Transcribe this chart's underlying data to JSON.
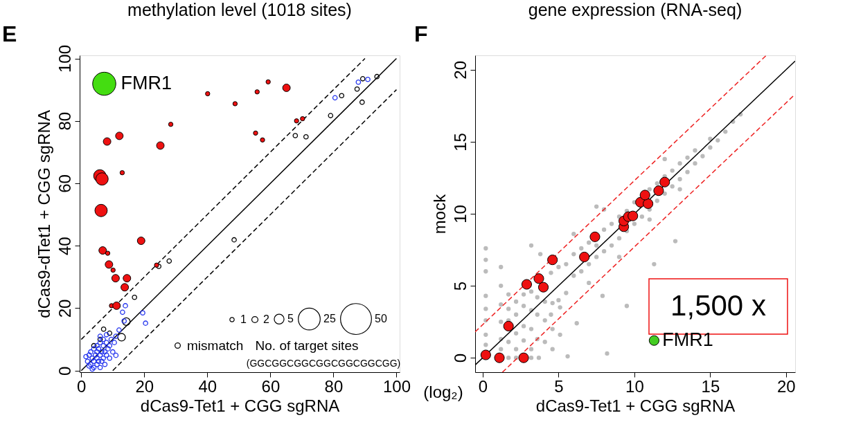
{
  "chart_data": [
    {
      "type": "bubble",
      "title": "methylation level (1018 sites)",
      "xlabel": "dCas9-Tet1 + CGG sgRNA",
      "ylabel": "dCas9-dTet1 + CGG sgRNA",
      "xlim": [
        -0.5,
        101
      ],
      "ylim": [
        -0.5,
        101
      ],
      "xticks": [
        0,
        20,
        40,
        60,
        80,
        100
      ],
      "yticks": [
        0,
        20,
        40,
        60,
        80,
        100
      ],
      "grid": false,
      "legend": "bottom",
      "legend_title": "No. of target sites",
      "size_legend": [
        1,
        2,
        5,
        25,
        50
      ],
      "annotations": [
        "E",
        "(GGCGGCGGCGGCGGCGGCGG)",
        {
          "text": "FMR1",
          "x": 7.3,
          "y": 91.9
        }
      ],
      "series": [
        {
          "type": "line",
          "color": "#000000",
          "x": [
            0,
            100
          ],
          "values": [
            0,
            100
          ]
        },
        {
          "type": "line",
          "color": "#000000",
          "line_style": "dashed",
          "x": [
            0,
            90
          ],
          "values": [
            10,
            100
          ]
        },
        {
          "type": "line",
          "color": "#000000",
          "line_style": "dashed",
          "x": [
            10,
            100
          ],
          "values": [
            0,
            90
          ]
        },
        {
          "name": "mismatch",
          "color": "#000000",
          "x": [
            24.6,
            27.9,
            16.9,
            48.5,
            7.1,
            12.8,
            14.3,
            67.9,
            71.3,
            79.1,
            82.6,
            87.5,
            89.1,
            89.3,
            93.8,
            4,
            6,
            9
          ],
          "values": [
            33.4,
            35.1,
            23.5,
            41.9,
            13.3,
            10.7,
            15.7,
            75.3,
            74.9,
            81.7,
            88.1,
            90.2,
            86.0,
            93.5,
            94.2,
            8,
            10,
            12
          ],
          "sizes": [
            1,
            1,
            1,
            1,
            1,
            3,
            3,
            1,
            1,
            1,
            1,
            1,
            1,
            1,
            1,
            1,
            1,
            1
          ]
        },
        {
          "color": "#2233ee",
          "x": [
            14.0,
            13.1,
            19.5,
            20.4,
            13.6,
            11.0,
            80.5,
            87.9,
            90.9,
            1.5,
            2,
            2.5,
            3,
            3,
            3.5,
            4,
            4,
            4,
            4.5,
            5,
            5,
            5,
            5,
            5.5,
            5.5,
            6,
            6,
            6,
            6.5,
            6.5,
            7,
            7,
            7,
            7.5,
            7.5,
            8,
            8,
            8.5,
            9,
            9,
            9.5,
            10,
            10.5,
            11,
            3.5,
            2.5,
            12,
            8,
            6
          ],
          "values": [
            20.8,
            18.7,
            18.5,
            15.2,
            15.9,
            4.9,
            87.4,
            92.4,
            93.3,
            4.5,
            3,
            5,
            2,
            6,
            4,
            1,
            3,
            7,
            5,
            2,
            4,
            6,
            8,
            3,
            7,
            1,
            5,
            9,
            3,
            6,
            4,
            8,
            10,
            2,
            6,
            5,
            9,
            7,
            4,
            8,
            10,
            6,
            9,
            11,
            0.5,
            1.5,
            13,
            11.5,
            11
          ],
          "sizes": [
            1,
            1,
            1,
            1,
            1,
            1,
            1,
            1,
            1,
            1,
            1,
            1,
            1,
            1,
            1,
            1,
            1,
            1,
            1,
            1,
            1,
            1,
            1,
            1,
            1,
            1,
            1,
            1,
            1,
            1,
            1,
            1,
            1,
            1,
            1,
            1,
            1,
            1,
            1,
            1,
            1,
            1,
            1,
            1,
            1,
            1,
            1,
            1,
            1
          ]
        },
        {
          "color": "#ee1111",
          "marker": "circle",
          "x": [
            40.1,
            48.8,
            28.4,
            8.2,
            12.1,
            25.1,
            13.0,
            5.9,
            6.6,
            6.3,
            19.0,
            6.8,
            8.4,
            8.8,
            10.1,
            10.9,
            14.5,
            13.8,
            9.6,
            11.2,
            23.9,
            55.8,
            59.3,
            55.3,
            57.5,
            68.3,
            70.2,
            65.1
          ],
          "values": [
            88.7,
            85.5,
            78.9,
            73.4,
            75.2,
            72.1,
            63.4,
            62.4,
            61.4,
            51.3,
            41.6,
            38.5,
            37.6,
            34.0,
            32.2,
            29.6,
            29.6,
            26.7,
            20.8,
            20.8,
            33.8,
            89.3,
            92.5,
            76.1,
            73.9,
            80.0,
            80.7,
            90.6
          ],
          "sizes": [
            1,
            1,
            1,
            3,
            3,
            3,
            1,
            8,
            8,
            8,
            3,
            3,
            1,
            3,
            1,
            3,
            3,
            3,
            1,
            3,
            1,
            1,
            1,
            1,
            1,
            1,
            1,
            3
          ]
        },
        {
          "color": "#44dd11",
          "marker": "circle",
          "x": [
            7.3
          ],
          "values": [
            91.9
          ],
          "sizes": [
            28
          ]
        }
      ]
    },
    {
      "type": "scatter",
      "title": "gene expression (RNA-seq)",
      "xlabel": "dCas9-Tet1 + CGG sgRNA",
      "ylabel": "mock",
      "xlim": [
        -0.5,
        20.6
      ],
      "ylim": [
        -1,
        21
      ],
      "xticks": [
        0,
        5,
        10,
        15,
        20
      ],
      "yticks": [
        0,
        5,
        10,
        15,
        20
      ],
      "grid": false,
      "annotations": [
        "F",
        "(log₂)",
        "1,500 x",
        {
          "text": "FMR1",
          "x": 11.3,
          "y": 1.2
        }
      ],
      "series": [
        {
          "color": "#bbbbbb",
          "marker": "circle",
          "x": [
            0.2,
            0.2,
            0.2,
            0.2,
            0.2,
            0.2,
            0.2,
            0.2,
            1.2,
            1.2,
            1.2,
            1.2,
            1.2,
            1.2,
            1.7,
            1.7,
            1.7,
            1.7,
            1.7,
            2.2,
            2.2,
            2.2,
            2.2,
            2.2,
            2.7,
            2.7,
            2.7,
            2.7,
            3.2,
            3.2,
            3.2,
            3.2,
            3.2,
            3.6,
            3.6,
            3.6,
            3.7,
            4.1,
            4.1,
            4.1,
            4.6,
            4.6,
            4.6,
            5.1,
            5.1,
            5.6,
            6.2,
            8.2,
            7.9,
            4.5,
            5.0,
            5.5,
            6.0,
            6.0,
            6.5,
            6.5,
            7.0,
            7.0,
            7.5,
            7.5,
            8.0,
            8.0,
            8.5,
            8.5,
            9.0,
            9.0,
            9.5,
            9.5,
            10.0,
            10.0,
            10.5,
            10.5,
            11.0,
            11.0,
            11.5,
            11.5,
            12.0,
            12.0,
            12.5,
            12.5,
            13.0,
            13.0,
            13.5,
            13.5,
            14.0,
            14.0,
            14.5,
            15.0,
            15.0,
            15.5,
            16.0,
            16.5,
            17.0,
            5.5,
            5.0,
            4.5,
            7.0,
            9.0,
            11.0,
            13.0,
            12.0,
            8.0,
            7.5,
            6.0,
            11.3,
            9.5,
            12.7,
            3.2,
            3.8
          ],
          "values": [
            7.6,
            6.8,
            6.0,
            4.3,
            3.4,
            2.6,
            1.6,
            0.9,
            6.3,
            5.0,
            3.7,
            2.5,
            1.3,
            0.6,
            4.4,
            3.4,
            2.6,
            1.1,
            0.0,
            3.9,
            3.0,
            1.7,
            0.6,
            0.0,
            4.4,
            3.6,
            2.2,
            1.2,
            4.6,
            3.3,
            2.0,
            0.6,
            0.0,
            4.2,
            3.0,
            1.3,
            0.0,
            3.9,
            2.6,
            1.1,
            3.8,
            2.0,
            0.6,
            3.5,
            1.6,
            0.1,
            2.4,
            0.3,
            4.3,
            5.9,
            6.3,
            6.5,
            5.7,
            7.2,
            6.0,
            7.6,
            6.5,
            8.0,
            7.0,
            7.8,
            7.4,
            8.9,
            7.8,
            9.3,
            8.3,
            9.8,
            8.8,
            10.2,
            9.3,
            10.8,
            9.8,
            11.2,
            10.3,
            11.7,
            10.9,
            12.1,
            11.4,
            12.6,
            11.9,
            13.0,
            12.4,
            13.5,
            12.9,
            13.9,
            13.5,
            14.4,
            14.0,
            14.6,
            15.2,
            15.1,
            15.7,
            16.4,
            16.9,
            4.5,
            4.0,
            3.0,
            5.2,
            7.0,
            9.6,
            11.7,
            13.8,
            10.3,
            10.5,
            8.6,
            6.5,
            3.6,
            8.1,
            7.8,
            7.2
          ],
          "sizes": [
            0.2,
            0.2,
            0.2,
            0.2,
            0.2,
            0.2,
            0.2,
            0.2,
            0.2,
            0.2,
            0.2,
            0.2,
            0.2,
            0.2,
            0.2,
            0.2,
            0.2,
            0.2,
            0.2,
            0.2,
            0.2,
            0.2,
            0.2,
            0.2,
            0.2,
            0.2,
            0.2,
            0.2,
            0.2,
            0.2,
            0.2,
            0.2,
            0.2,
            0.2,
            0.2,
            0.2,
            0.2,
            0.2,
            0.2,
            0.2,
            0.2,
            0.2,
            0.2,
            0.2,
            0.2,
            0.2,
            0.2,
            0.2,
            0.2,
            0.2,
            0.2,
            0.2,
            0.2,
            0.2,
            0.2,
            0.2,
            0.2,
            0.2,
            0.2,
            0.2,
            0.2,
            0.2,
            0.2,
            0.2,
            0.2,
            0.2,
            0.2,
            0.2,
            0.2,
            0.2,
            0.2,
            0.2,
            0.2,
            0.2,
            0.2,
            0.2,
            0.2,
            0.2,
            0.2,
            0.2,
            0.2,
            0.2,
            0.2,
            0.2,
            0.2,
            0.2,
            0.2,
            0.2,
            0.2,
            0.2,
            0.2,
            0.2,
            0.2,
            0.2,
            0.2,
            0.2,
            0.2,
            0.2,
            0.2,
            0.2,
            0.2,
            0.2,
            0.2,
            0.2,
            0.2,
            0.2,
            0.2,
            0.2,
            0.2
          ]
        },
        {
          "type": "line",
          "color": "#000000",
          "x": [
            -0.5,
            20.6
          ],
          "values": [
            -0.5,
            20.6
          ]
        },
        {
          "type": "line",
          "color": "#ee2222",
          "line_style": "dashed",
          "x": [
            -0.5,
            18.7
          ],
          "values": [
            1.8,
            21
          ]
        },
        {
          "type": "line",
          "color": "#ee2222",
          "line_style": "dashed",
          "x": [
            1.3,
            20.6
          ],
          "values": [
            -1,
            18.3
          ]
        },
        {
          "color": "#ee1111",
          "marker": "circle",
          "x": [
            0.2,
            1.1,
            2.7,
            1.7,
            2.9,
            3.7,
            4.0,
            4.6,
            6.7,
            7.4,
            9.3,
            9.3,
            9.6,
            9.9,
            10.4,
            10.9,
            10.7,
            11.6,
            12.0
          ],
          "values": [
            0.2,
            0.0,
            0.0,
            2.2,
            5.1,
            5.5,
            4.9,
            6.8,
            7.0,
            8.4,
            9.1,
            9.5,
            9.8,
            9.85,
            10.8,
            10.7,
            11.3,
            11.6,
            12.2
          ],
          "sizes": [
            1,
            1,
            1,
            1,
            1,
            1,
            1,
            1,
            1,
            1,
            1,
            1,
            1,
            1,
            1,
            1,
            1,
            1,
            1
          ]
        },
        {
          "color": "#44cc22",
          "marker": "circle",
          "x": [
            11.3
          ],
          "values": [
            1.2
          ],
          "sizes": [
            1
          ]
        }
      ]
    }
  ]
}
